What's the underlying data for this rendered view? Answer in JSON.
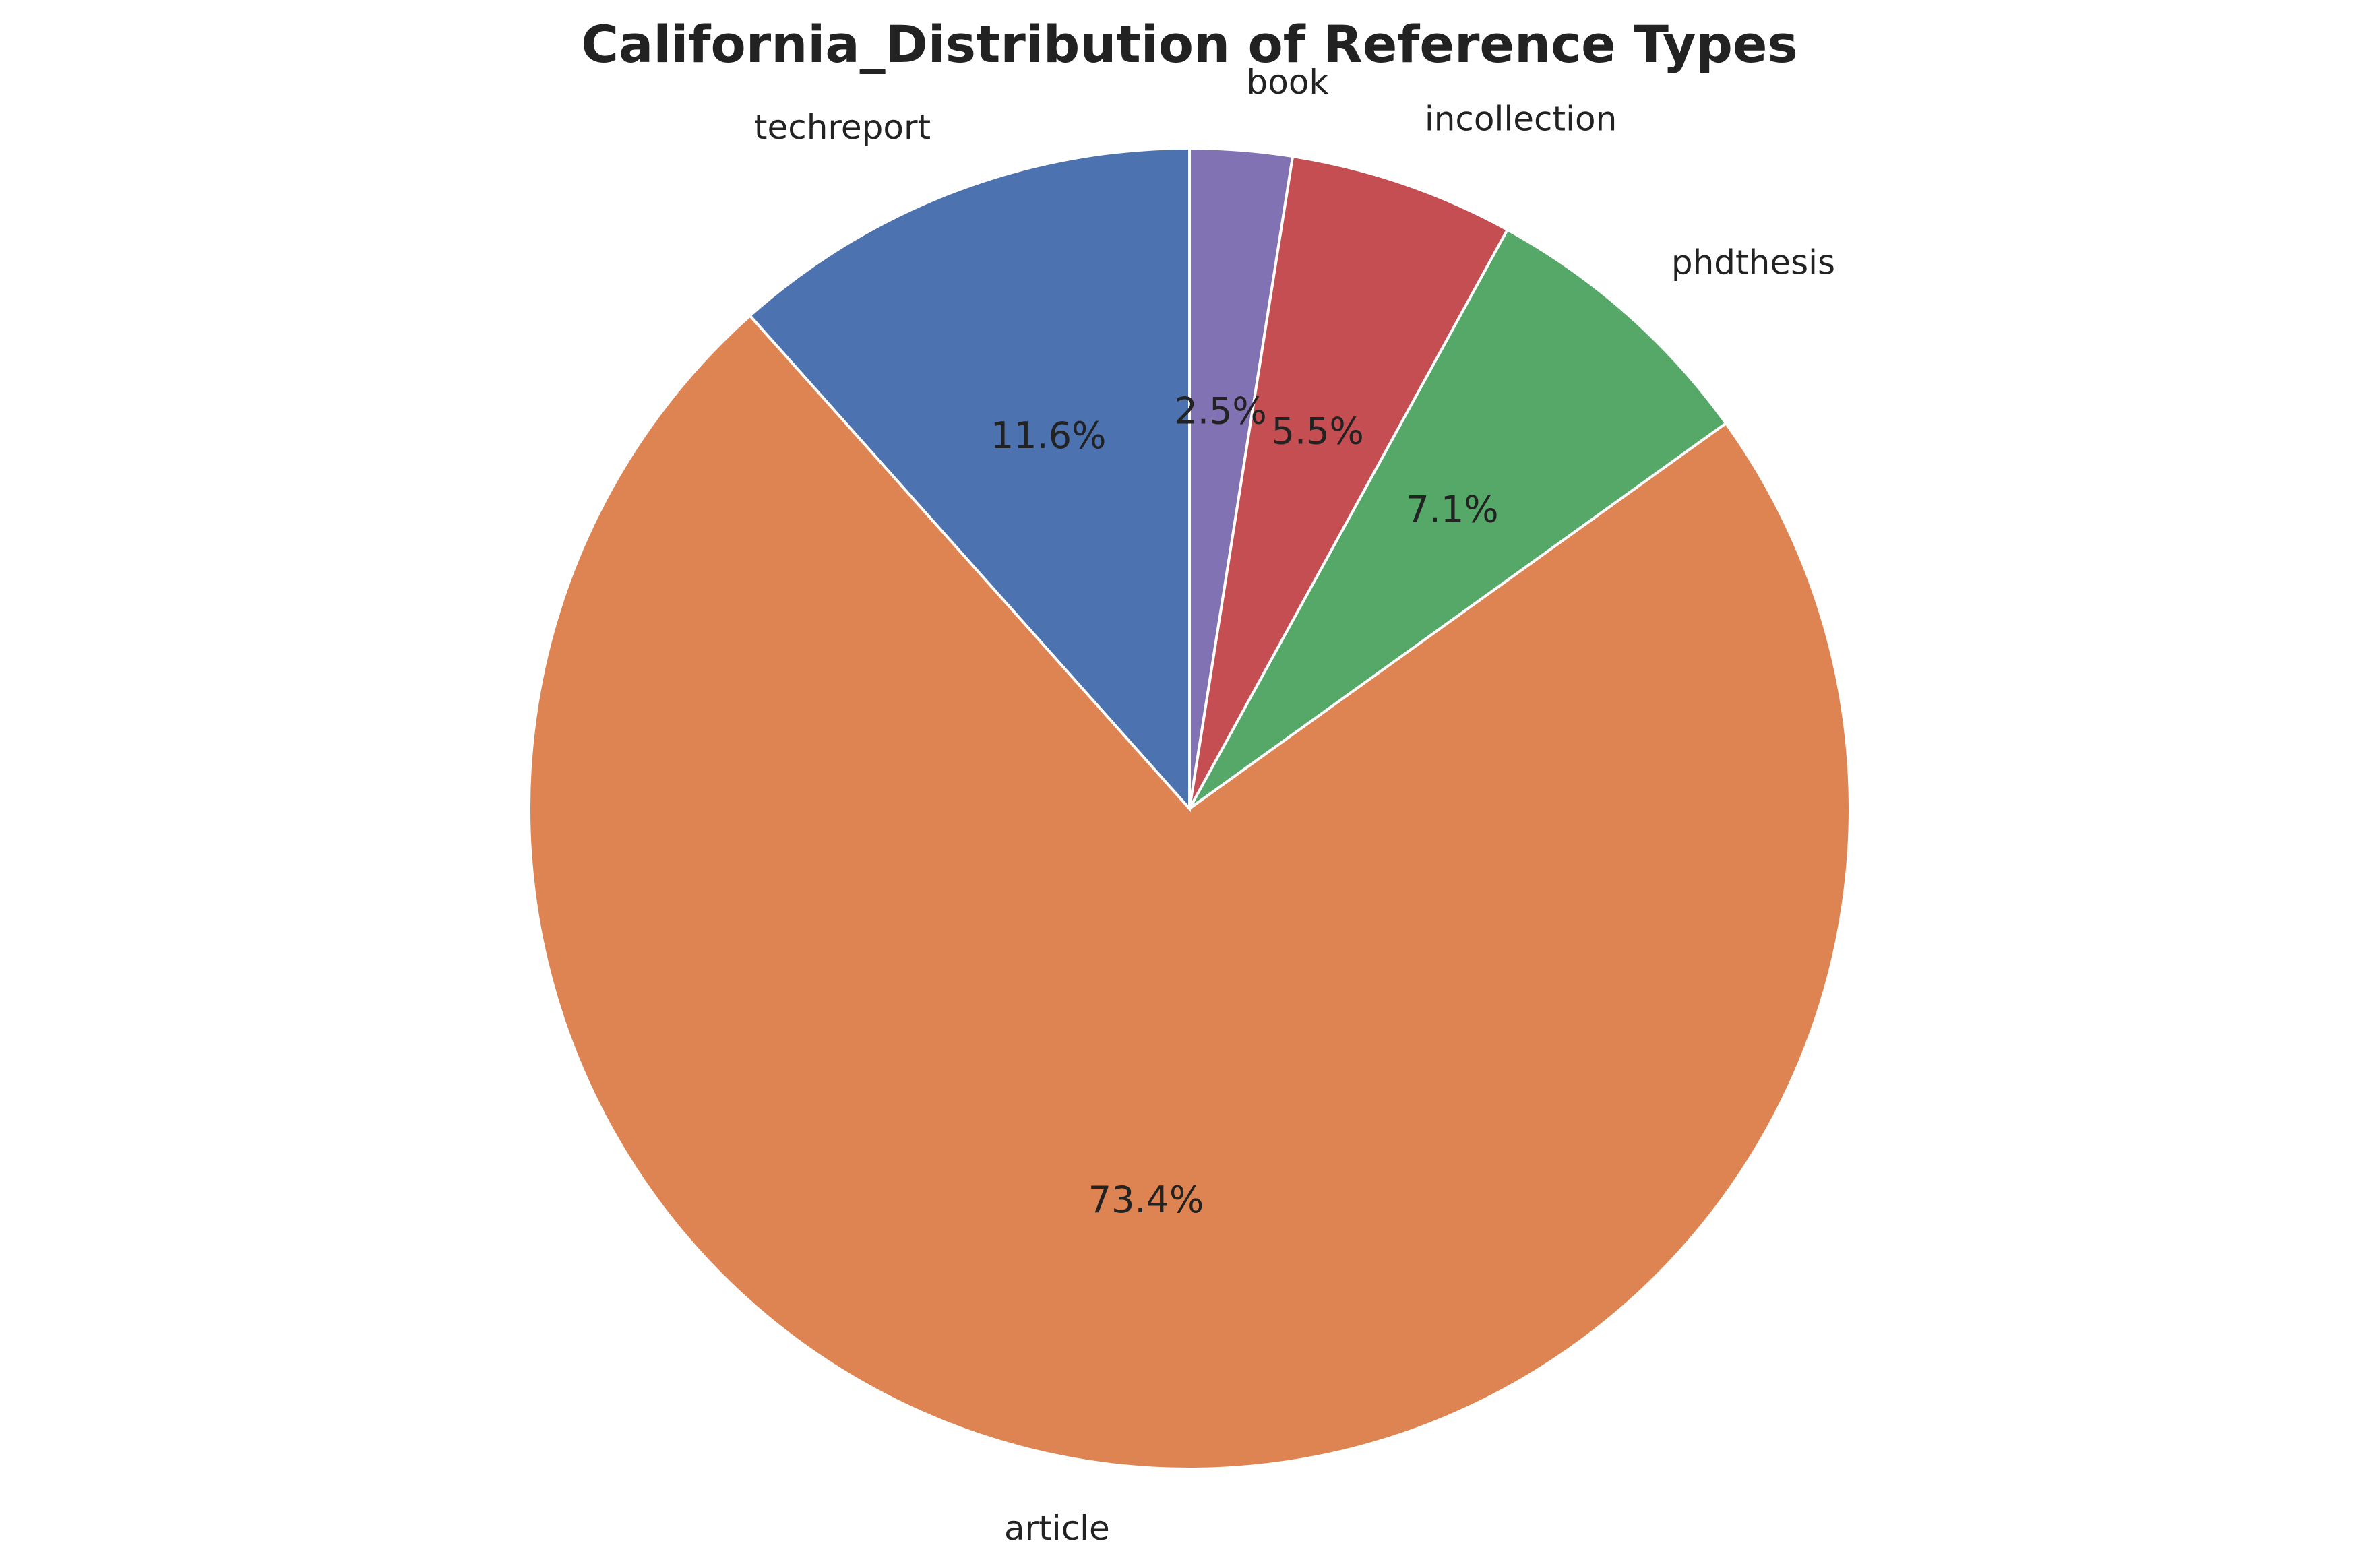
{
  "chart_data": {
    "type": "pie",
    "title": "California_Distribution of Reference Types",
    "start_angle_deg": 90,
    "direction": "clockwise",
    "slices": [
      {
        "label": "book",
        "value": 2.5,
        "pct_label": "2.5%",
        "color": "#8172B3"
      },
      {
        "label": "incollection",
        "value": 5.5,
        "pct_label": "5.5%",
        "color": "#C44E52"
      },
      {
        "label": "phdthesis",
        "value": 7.1,
        "pct_label": "7.1%",
        "color": "#55A868"
      },
      {
        "label": "article",
        "value": 73.4,
        "pct_label": "73.4%",
        "color": "#DD8452"
      },
      {
        "label": "techreport",
        "value": 11.6,
        "pct_label": "11.6%",
        "color": "#4C72B0"
      }
    ]
  }
}
